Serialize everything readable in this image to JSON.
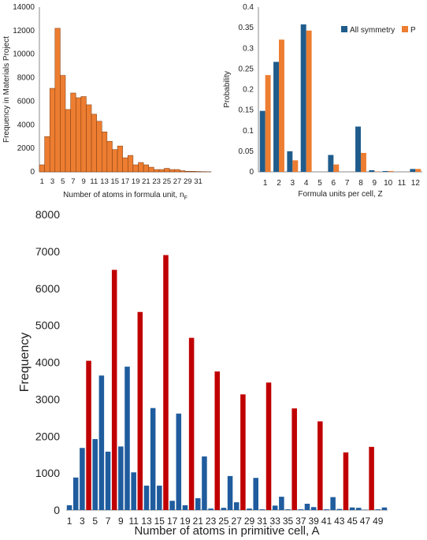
{
  "chart_data": [
    {
      "type": "bar",
      "title": "",
      "xlabel": "Number of atoms in formula unit, n",
      "xlabel_sub": "F",
      "ylabel": "Frequency in Materials Project",
      "ylim": [
        0,
        14000
      ],
      "yticks": [
        0,
        2000,
        4000,
        6000,
        8000,
        10000,
        12000,
        14000
      ],
      "x": [
        1,
        2,
        3,
        4,
        5,
        6,
        7,
        8,
        9,
        10,
        11,
        12,
        13,
        14,
        15,
        16,
        17,
        18,
        19,
        20,
        21,
        22,
        23,
        24,
        25,
        26,
        27,
        28,
        29,
        30,
        31,
        32,
        33
      ],
      "xtick_labels": [
        "1",
        "3",
        "5",
        "7",
        "9",
        "11",
        "13",
        "15",
        "17",
        "19",
        "21",
        "23",
        "25",
        "27",
        "29",
        "31"
      ],
      "values": [
        600,
        3000,
        7100,
        12200,
        8200,
        5300,
        6700,
        6300,
        6400,
        5700,
        4900,
        4300,
        3400,
        2600,
        1900,
        2200,
        1200,
        1400,
        600,
        800,
        600,
        400,
        200,
        200,
        300,
        200,
        200,
        100,
        50,
        50,
        30,
        20,
        10
      ],
      "colors": {
        "bar": "#ED7D31",
        "edge": "#7a3a10"
      },
      "grid": false
    },
    {
      "type": "bar",
      "title": "",
      "xlabel": "Formula units per cell, Z",
      "ylabel": "Probability",
      "ylim": [
        0,
        0.4
      ],
      "yticks": [
        0,
        0.05,
        0.1,
        0.15,
        0.2,
        0.25,
        0.3,
        0.35,
        0.4
      ],
      "ytick_labels": [
        "0",
        "0.05",
        "0.1",
        "0.15",
        "0.2",
        "0.25",
        "0.3",
        "0.35",
        "0.4"
      ],
      "categories": [
        "1",
        "2",
        "3",
        "4",
        "5",
        "6",
        "7",
        "8",
        "9",
        "10",
        "11",
        "12"
      ],
      "series": [
        {
          "name": "All symmetry",
          "color": "#1F5C8C",
          "values": [
            0.148,
            0.267,
            0.05,
            0.358,
            0,
            0.041,
            0,
            0.11,
            0.004,
            0.002,
            0,
            0.007
          ]
        },
        {
          "name": "P",
          "color": "#ED7D31",
          "values": [
            0.235,
            0.321,
            0.028,
            0.343,
            0,
            0.018,
            0,
            0.046,
            0.001,
            0.002,
            0,
            0.007
          ]
        }
      ],
      "legend": "top-right",
      "grid": false
    },
    {
      "type": "bar",
      "title": "",
      "xlabel": "Number of atoms in primitive cell, A",
      "ylabel": "Frequency",
      "ylim": [
        0,
        8000
      ],
      "yticks": [
        0,
        1000,
        2000,
        3000,
        4000,
        5000,
        6000,
        7000,
        8000
      ],
      "x": [
        1,
        2,
        3,
        4,
        5,
        6,
        7,
        8,
        9,
        10,
        11,
        12,
        13,
        14,
        15,
        16,
        17,
        18,
        19,
        20,
        21,
        22,
        23,
        24,
        25,
        26,
        27,
        28,
        29,
        30,
        31,
        32,
        33,
        34,
        35,
        36,
        37,
        38,
        39,
        40,
        41,
        42,
        43,
        44,
        45,
        46,
        47,
        48,
        49,
        50
      ],
      "xtick_labels": [
        "1",
        "3",
        "5",
        "7",
        "9",
        "11",
        "13",
        "15",
        "17",
        "19",
        "21",
        "23",
        "25",
        "27",
        "29",
        "31",
        "33",
        "35",
        "37",
        "39",
        "41",
        "43",
        "45",
        "47",
        "49"
      ],
      "values": [
        130,
        880,
        1680,
        4040,
        1920,
        3640,
        1580,
        6500,
        1720,
        3880,
        1020,
        5360,
        660,
        2760,
        660,
        6900,
        250,
        2610,
        130,
        4660,
        320,
        1450,
        40,
        3750,
        60,
        920,
        210,
        3130,
        40,
        870,
        20,
        3450,
        120,
        360,
        20,
        2750,
        20,
        170,
        80,
        2400,
        20,
        350,
        30,
        1560,
        70,
        60,
        10,
        1710,
        20,
        70
      ],
      "highlight_every": 4,
      "colors": {
        "base": "#1F5C9E",
        "highlight": "#C00000"
      },
      "grid": false
    }
  ]
}
